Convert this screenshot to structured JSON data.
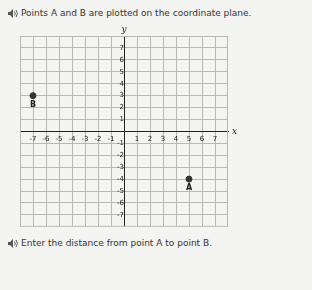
{
  "chart_data": {
    "type": "scatter",
    "title": "Points A and B are plotted on the coordinate plane.",
    "subtitle": "Enter the distance from point A to point B.",
    "xlabel": "x",
    "ylabel": "y",
    "points": [
      {
        "label": "B",
        "x": -7,
        "y": 3
      },
      {
        "label": "A",
        "x": 5,
        "y": -4
      }
    ],
    "color": "#333333",
    "marker": "circle",
    "xlim": [
      -8,
      8
    ],
    "ylim": [
      -8,
      8
    ],
    "xticks": [
      -7,
      -6,
      -5,
      -4,
      -3,
      -2,
      -1,
      1,
      2,
      3,
      4,
      5,
      6,
      7
    ],
    "yticks": [
      -7,
      -6,
      -5,
      -4,
      -3,
      -2,
      -1,
      1,
      2,
      3,
      4,
      5,
      6,
      7
    ],
    "grid": true
  }
}
